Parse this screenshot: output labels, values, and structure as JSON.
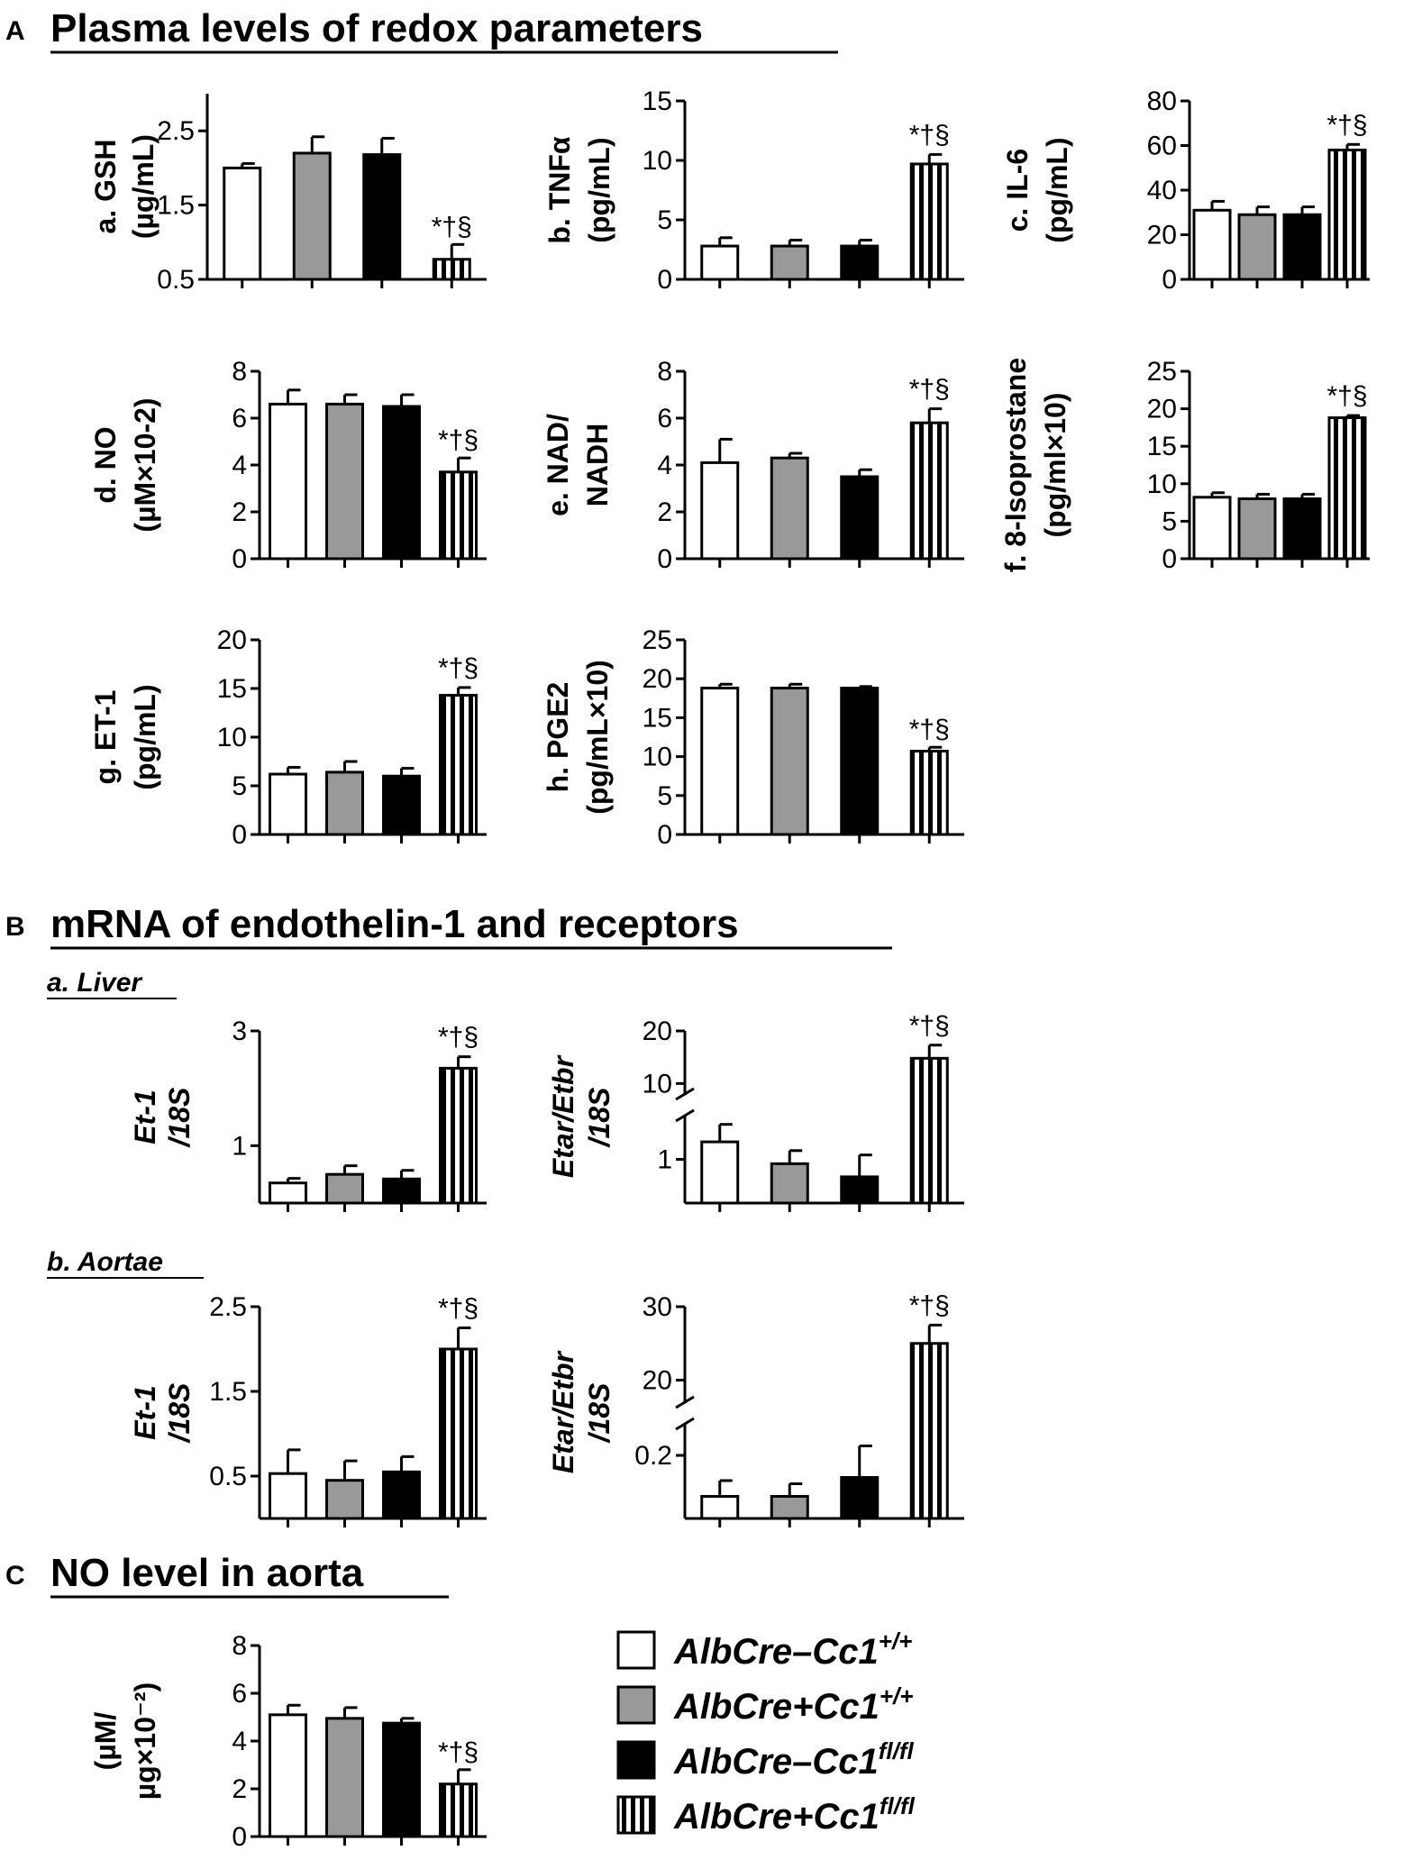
{
  "sections": [
    {
      "id": "A",
      "letter": "A",
      "title": "Plasma levels of redox parameters"
    },
    {
      "id": "B",
      "letter": "B",
      "title": "mRNA of endothelin-1 and receptors"
    },
    {
      "id": "C",
      "letter": "C",
      "title": "NO level in aorta"
    }
  ],
  "subsections": [
    {
      "id": "liver",
      "label": "a. Liver"
    },
    {
      "id": "aortae",
      "label": "b. Aortae"
    }
  ],
  "legend": [
    {
      "prefix": "AlbCre–Cc1",
      "sup": "+/+",
      "pattern": "white"
    },
    {
      "prefix": "AlbCre+Cc1",
      "sup": "+/+",
      "pattern": "gray"
    },
    {
      "prefix": "AlbCre–Cc1",
      "sup": "fl/fl",
      "pattern": "black"
    },
    {
      "prefix": "AlbCre+Cc1",
      "sup": "fl/fl",
      "pattern": "striped"
    }
  ],
  "colors": {
    "white": "#ffffff",
    "gray": "#999999",
    "black": "#000000",
    "stripe": "#000000"
  },
  "chart_data": [
    {
      "id": "A-a",
      "type": "bar",
      "ylabel": [
        "a. GSH",
        "(µg/mL)"
      ],
      "ylim": [
        0.5,
        3
      ],
      "ticks": [
        "0.5",
        "1.5",
        "2.5"
      ],
      "values": [
        2.0,
        2.2,
        2.18,
        0.77
      ],
      "errors": [
        0.06,
        0.22,
        0.22,
        0.2
      ],
      "significance": [
        null,
        null,
        null,
        "*†§"
      ]
    },
    {
      "id": "A-b",
      "type": "bar",
      "ylabel": [
        "b. TNFα",
        "(pg/mL)"
      ],
      "ylim": [
        0,
        15
      ],
      "ticks": [
        "0",
        "5",
        "10",
        "15"
      ],
      "values": [
        2.8,
        2.8,
        2.8,
        9.7
      ],
      "errors": [
        0.7,
        0.5,
        0.5,
        0.8
      ],
      "significance": [
        null,
        null,
        null,
        "*†§"
      ]
    },
    {
      "id": "A-c",
      "type": "bar",
      "ylabel": [
        "c. IL-6",
        "(pg/mL)"
      ],
      "ylim": [
        0,
        80
      ],
      "ticks": [
        "0",
        "20",
        "40",
        "60",
        "80"
      ],
      "values": [
        31,
        29,
        29,
        58
      ],
      "errors": [
        4,
        3.5,
        3.5,
        2.5
      ],
      "significance": [
        null,
        null,
        null,
        "*†§"
      ]
    },
    {
      "id": "A-d",
      "type": "bar",
      "ylabel": [
        "d. NO",
        "(µM×10-2)"
      ],
      "ylim": [
        0,
        8
      ],
      "ticks": [
        "0",
        "2",
        "4",
        "6",
        "8"
      ],
      "values": [
        6.6,
        6.6,
        6.5,
        3.7
      ],
      "errors": [
        0.6,
        0.4,
        0.5,
        0.6
      ],
      "significance": [
        null,
        null,
        null,
        "*†§"
      ]
    },
    {
      "id": "A-e",
      "type": "bar",
      "ylabel": [
        "e. NAD/",
        "NADH"
      ],
      "ylim": [
        0,
        8
      ],
      "ticks": [
        "0",
        "2",
        "4",
        "6",
        "8"
      ],
      "values": [
        4.1,
        4.3,
        3.5,
        5.8
      ],
      "errors": [
        1.0,
        0.2,
        0.3,
        0.6
      ],
      "significance": [
        null,
        null,
        null,
        "*†§"
      ]
    },
    {
      "id": "A-f",
      "type": "bar",
      "ylabel": [
        "f. 8-Isoprostane",
        "(pg/ml×10)"
      ],
      "ylim": [
        0,
        25
      ],
      "ticks": [
        "0",
        "5",
        "10",
        "15",
        "20",
        "25"
      ],
      "values": [
        8.2,
        8.0,
        8.0,
        18.8
      ],
      "errors": [
        0.6,
        0.6,
        0.6,
        0.3
      ],
      "significance": [
        null,
        null,
        null,
        "*†§"
      ]
    },
    {
      "id": "A-g",
      "type": "bar",
      "ylabel": [
        "g. ET-1",
        "(pg/mL)"
      ],
      "ylim": [
        0,
        20
      ],
      "ticks": [
        "0",
        "5",
        "10",
        "15",
        "20"
      ],
      "values": [
        6.2,
        6.4,
        6.0,
        14.3
      ],
      "errors": [
        0.7,
        1.1,
        0.8,
        0.8
      ],
      "significance": [
        null,
        null,
        null,
        "*†§"
      ]
    },
    {
      "id": "A-h",
      "type": "bar",
      "ylabel": [
        "h. PGE2",
        "(pg/mL×10)"
      ],
      "ylim": [
        0,
        25
      ],
      "ticks": [
        "0",
        "5",
        "10",
        "15",
        "20",
        "25"
      ],
      "values": [
        18.8,
        18.8,
        18.8,
        10.7
      ],
      "errors": [
        0.5,
        0.5,
        0.2,
        0.5
      ],
      "significance": [
        null,
        null,
        null,
        "*†§"
      ]
    },
    {
      "id": "B-a-1",
      "type": "bar",
      "ylabel": [
        "Et-1",
        "/18S"
      ],
      "italic": true,
      "ylim": [
        0,
        3
      ],
      "ticks": [
        "1",
        "3"
      ],
      "tickvals": [
        1,
        3
      ],
      "values": [
        0.35,
        0.5,
        0.42,
        2.35
      ],
      "errors": [
        0.08,
        0.15,
        0.15,
        0.2
      ],
      "significance": [
        null,
        null,
        null,
        "*†§"
      ]
    },
    {
      "id": "B-a-2",
      "type": "bar",
      "ylabel": [
        "Etar/Etbr",
        "/18S"
      ],
      "italic": true,
      "broken_axis": true,
      "lower": {
        "ylim": [
          0,
          2
        ],
        "ticks": [
          "1"
        ],
        "tickvals": [
          1
        ]
      },
      "upper": {
        "ylim": [
          8,
          20
        ],
        "ticks": [
          "10",
          "20"
        ],
        "tickvals": [
          10,
          20
        ]
      },
      "values": [
        1.4,
        0.9,
        0.6,
        14.8
      ],
      "errors": [
        0.4,
        0.3,
        0.5,
        2.5
      ],
      "significance": [
        null,
        null,
        null,
        "*†§"
      ]
    },
    {
      "id": "B-b-1",
      "type": "bar",
      "ylabel": [
        "Et-1",
        "/18S"
      ],
      "italic": true,
      "ylim": [
        0,
        2.5
      ],
      "ticks": [
        "0.5",
        "1.5",
        "2.5"
      ],
      "tickvals": [
        0.5,
        1.5,
        2.5
      ],
      "values": [
        0.53,
        0.45,
        0.55,
        2.0
      ],
      "errors": [
        0.28,
        0.23,
        0.18,
        0.25
      ],
      "significance": [
        null,
        null,
        null,
        "*†§"
      ]
    },
    {
      "id": "B-b-2",
      "type": "bar",
      "ylabel": [
        "Etar/Etbr",
        "/18S"
      ],
      "italic": true,
      "broken_axis": true,
      "lower": {
        "ylim": [
          0,
          0.3
        ],
        "ticks": [
          "0.2"
        ],
        "tickvals": [
          0.2
        ]
      },
      "upper": {
        "ylim": [
          17,
          30
        ],
        "ticks": [
          "20",
          "30"
        ],
        "tickvals": [
          20,
          30
        ]
      },
      "values": [
        0.07,
        0.07,
        0.13,
        25
      ],
      "errors": [
        0.05,
        0.04,
        0.1,
        2.5
      ],
      "significance": [
        null,
        null,
        null,
        "*†§"
      ]
    },
    {
      "id": "C",
      "type": "bar",
      "ylabel": [
        "(µM/",
        "µg×10⁻²)"
      ],
      "ylim": [
        0,
        8
      ],
      "ticks": [
        "0",
        "2",
        "4",
        "6",
        "8"
      ],
      "values": [
        5.1,
        4.95,
        4.75,
        2.2
      ],
      "errors": [
        0.4,
        0.45,
        0.2,
        0.6
      ],
      "significance": [
        null,
        null,
        null,
        "*†§"
      ]
    }
  ]
}
